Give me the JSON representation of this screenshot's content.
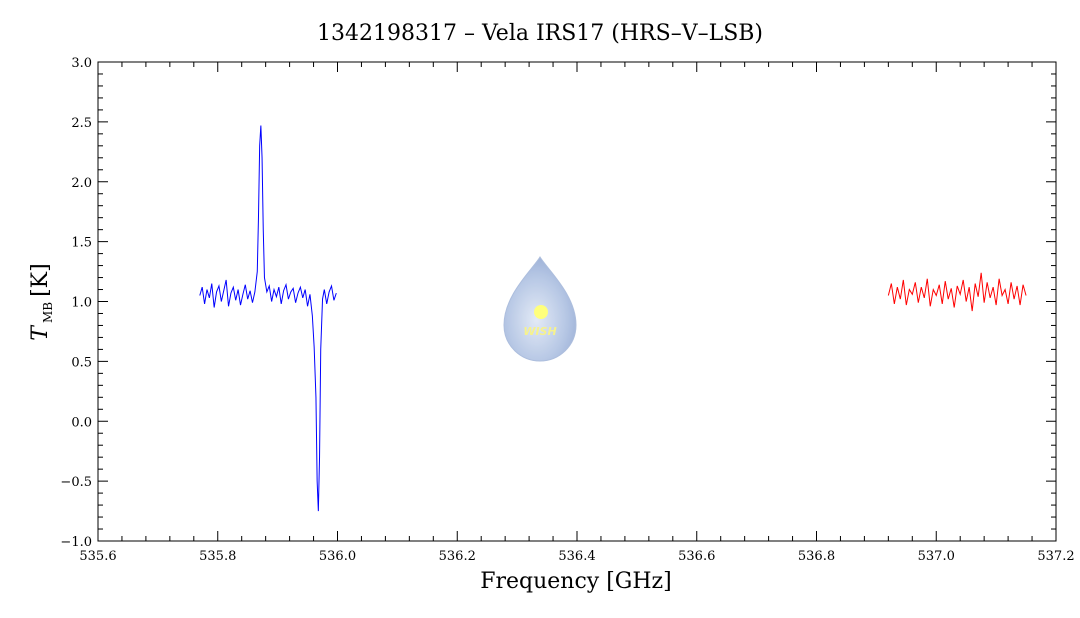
{
  "chart_data": {
    "type": "line",
    "title": "1342198317 – Vela IRS17 (HRS–V–LSB)",
    "xlabel": "Frequency [GHz]",
    "ylabel": "T",
    "ylabel_sub": "MB",
    "ylabel_unit": "[K]",
    "logo_text": "WISH",
    "xlim": [
      535.6,
      537.2
    ],
    "ylim": [
      -1.0,
      3.0
    ],
    "xticks": [
      535.6,
      535.8,
      {
        "value": 536.0,
        "label": "536.0"
      },
      536.2,
      536.4,
      536.6,
      536.8,
      {
        "value": 537.0,
        "label": "537.0"
      },
      537.2
    ],
    "yticks": [
      {
        "value": -1.0,
        "label": "−1.0"
      },
      {
        "value": -0.5,
        "label": "−0.5"
      },
      {
        "value": 0,
        "label": "0.0"
      },
      0.5,
      {
        "value": 1.0,
        "label": "1.0"
      },
      1.5,
      {
        "value": 2.0,
        "label": "2.0"
      },
      2.5,
      {
        "value": 3.0,
        "label": "3.0"
      }
    ],
    "grid": false,
    "series": [
      {
        "color": "#0000ff",
        "x": [
          535.77,
          535.774,
          535.778,
          535.782,
          535.786,
          535.79,
          535.794,
          535.798,
          535.802,
          535.806,
          535.81,
          535.814,
          535.818,
          535.822,
          535.826,
          535.83,
          535.834,
          535.838,
          535.842,
          535.846,
          535.85,
          535.854,
          535.858,
          535.862,
          535.866,
          535.868,
          535.87,
          535.872,
          535.874,
          535.876,
          535.878,
          535.882,
          535.886,
          535.89,
          535.894,
          535.898,
          535.902,
          535.906,
          535.91,
          535.914,
          535.918,
          535.922,
          535.926,
          535.93,
          535.934,
          535.938,
          535.942,
          535.946,
          535.95,
          535.954,
          535.958,
          535.961,
          535.964,
          535.966,
          535.968,
          535.97,
          535.972,
          535.975,
          535.978,
          535.982,
          535.986,
          535.99,
          535.994,
          535.998
        ],
        "values": [
          1.05,
          1.12,
          0.98,
          1.1,
          1.03,
          1.15,
          0.95,
          1.08,
          1.13,
          1.0,
          1.09,
          1.18,
          0.96,
          1.07,
          1.12,
          1.01,
          1.1,
          0.97,
          1.06,
          1.14,
          1.02,
          1.09,
          0.99,
          1.08,
          1.25,
          1.7,
          2.3,
          2.47,
          2.2,
          1.6,
          1.2,
          1.08,
          1.13,
          1.0,
          1.1,
          1.04,
          1.12,
          0.98,
          1.09,
          1.14,
          1.02,
          1.08,
          1.11,
          0.99,
          1.07,
          1.12,
          1.03,
          1.1,
          0.96,
          1.06,
          0.88,
          0.62,
          0.2,
          -0.5,
          -0.75,
          -0.3,
          0.6,
          1.02,
          1.1,
          0.98,
          1.08,
          1.13,
          1.01,
          1.07
        ]
      },
      {
        "color": "#ff0000",
        "x": [
          536.92,
          536.925,
          536.93,
          536.935,
          536.94,
          536.945,
          536.95,
          536.955,
          536.96,
          536.965,
          536.97,
          536.975,
          536.98,
          536.985,
          536.99,
          536.995,
          537.0,
          537.005,
          537.01,
          537.015,
          537.02,
          537.025,
          537.03,
          537.035,
          537.04,
          537.045,
          537.05,
          537.055,
          537.06,
          537.065,
          537.07,
          537.075,
          537.08,
          537.085,
          537.09,
          537.095,
          537.1,
          537.105,
          537.11,
          537.115,
          537.12,
          537.125,
          537.13,
          537.135,
          537.14,
          537.145,
          537.15
        ],
        "values": [
          1.05,
          1.15,
          0.98,
          1.12,
          1.02,
          1.18,
          0.97,
          1.1,
          1.06,
          1.16,
          0.99,
          1.12,
          1.03,
          1.19,
          0.96,
          1.1,
          1.05,
          1.14,
          0.98,
          1.17,
          1.02,
          1.11,
          0.95,
          1.13,
          1.06,
          1.18,
          1.0,
          1.12,
          0.92,
          1.15,
          1.04,
          1.24,
          0.99,
          1.16,
          1.03,
          1.12,
          0.97,
          1.19,
          1.05,
          1.1,
          0.98,
          1.16,
          1.02,
          1.13,
          0.97,
          1.14,
          1.05
        ]
      }
    ]
  }
}
